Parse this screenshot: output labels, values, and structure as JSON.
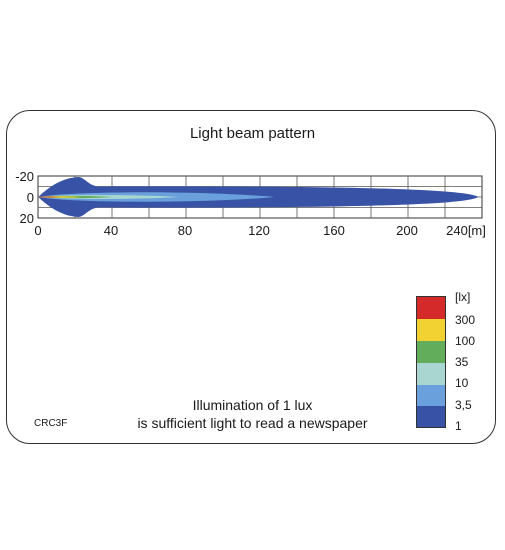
{
  "header": {
    "title": "Light beam pattern"
  },
  "footer": {
    "caption_line1": "Illumination of 1 lux",
    "caption_line2": "is sufficient light to read a newspaper",
    "code": "CRC3F"
  },
  "chart_data": {
    "type": "area",
    "title": "Light beam pattern",
    "x_ticks": [
      "0",
      "40",
      "80",
      "120",
      "160",
      "200",
      "240[m]"
    ],
    "y_ticks": [
      "-20",
      "0",
      "20"
    ],
    "xlim": [
      0,
      240
    ],
    "ylim": [
      -20,
      20
    ],
    "grid": true,
    "legend_title": "[lx]",
    "legend_position": "right",
    "legend": [
      {
        "label": "300",
        "color": "#d42a2a"
      },
      {
        "label": "100",
        "color": "#f2d233"
      },
      {
        "label": "35",
        "color": "#62ad5c"
      },
      {
        "label": "10",
        "color": "#a9d6d0"
      },
      {
        "label": "3,5",
        "color": "#6aa1dc"
      },
      {
        "label": "1",
        "color": "#3852a6"
      }
    ],
    "contours": [
      {
        "lux": "1",
        "reach_m": 238,
        "half_width_m": 10,
        "color": "#3852a6"
      },
      {
        "lux": "3,5",
        "reach_m": 128,
        "half_width_m": 6,
        "color": "#6aa1dc"
      },
      {
        "lux": "10",
        "reach_m": 76,
        "half_width_m": 2.5,
        "color": "#a9d6d0"
      },
      {
        "lux": "35",
        "reach_m": 40,
        "half_width_m": 1.5,
        "color": "#62ad5c"
      },
      {
        "lux": "100",
        "reach_m": 24,
        "half_width_m": 1,
        "color": "#f2d233"
      },
      {
        "lux": "300",
        "reach_m": 12,
        "half_width_m": 0.5,
        "color": "#d42a2a"
      }
    ]
  }
}
